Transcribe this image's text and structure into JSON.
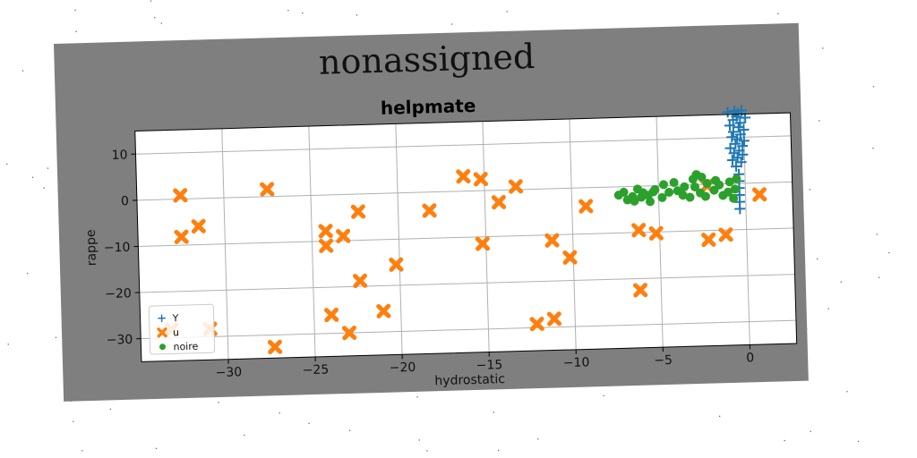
{
  "figure": {
    "suptitle": "nonassigned",
    "background_color": "#7f7f7f"
  },
  "chart_data": {
    "type": "scatter",
    "title": "helpmate",
    "xlabel": "hydrostatic",
    "ylabel": "rappe",
    "xlim": [
      -35,
      2.7
    ],
    "ylim": [
      -35,
      15
    ],
    "xticks": [
      -30,
      -25,
      -20,
      -15,
      -10,
      -5,
      0
    ],
    "yticks": [
      10,
      0,
      -10,
      -20,
      -30
    ],
    "xtick_labels": [
      "−30",
      "−25",
      "−20",
      "−15",
      "−10",
      "−5",
      "0"
    ],
    "ytick_labels": [
      "10",
      "0",
      "−10",
      "−20",
      "−30"
    ],
    "grid": true,
    "legend_position": "lower left",
    "series": [
      {
        "name": "Y",
        "marker": "plus",
        "color": "#1f77b4",
        "points": [
          [
            -0.5,
            16
          ],
          [
            -0.1,
            15.8
          ],
          [
            -0.3,
            15.2
          ],
          [
            -0.9,
            15.5
          ],
          [
            -0.4,
            14.5
          ],
          [
            0.1,
            14.2
          ],
          [
            -0.6,
            13.8
          ],
          [
            -0.2,
            13.1
          ],
          [
            -0.8,
            12.6
          ],
          [
            -0.3,
            12.2
          ],
          [
            0,
            11.6
          ],
          [
            -0.6,
            11.2
          ],
          [
            -0.2,
            10.6
          ],
          [
            -0.7,
            10.1
          ],
          [
            -0.4,
            9.6
          ],
          [
            0,
            9.2
          ],
          [
            -0.5,
            8.6
          ],
          [
            -0.1,
            8.1
          ],
          [
            -0.8,
            7.7
          ],
          [
            -0.3,
            7.1
          ],
          [
            -0.6,
            6.6
          ],
          [
            -0.1,
            6.2
          ],
          [
            -0.4,
            5.6
          ],
          [
            -0.7,
            5.1
          ],
          [
            -0.2,
            4.6
          ],
          [
            -0.5,
            3.7
          ],
          [
            -0.35,
            2
          ],
          [
            -0.35,
            0.5
          ],
          [
            -0.35,
            -1
          ],
          [
            -0.35,
            -2.5
          ],
          [
            -0.35,
            -4
          ],
          [
            -0.35,
            -5.5
          ]
        ]
      },
      {
        "name": "u",
        "marker": "x",
        "color": "#ff7f0e",
        "points": [
          [
            -32.5,
            0.8
          ],
          [
            -32.5,
            -8.2
          ],
          [
            -31.5,
            -6
          ],
          [
            -27.5,
            1.6
          ],
          [
            -27.3,
            -32.6
          ],
          [
            -33.2,
            -28.2
          ],
          [
            -31,
            -28.3
          ],
          [
            -24.2,
            -7.8
          ],
          [
            -24.2,
            -11
          ],
          [
            -23.2,
            -9
          ],
          [
            -22.3,
            -3.8
          ],
          [
            -22.3,
            -18.8
          ],
          [
            -24,
            -26
          ],
          [
            -23,
            -30
          ],
          [
            -20.2,
            -15.5
          ],
          [
            -21,
            -25.5
          ],
          [
            -18.2,
            -4
          ],
          [
            -16.2,
            3.2
          ],
          [
            -15.2,
            2.5
          ],
          [
            -14.2,
            -2.6
          ],
          [
            -13.2,
            0.7
          ],
          [
            -15.2,
            -11.5
          ],
          [
            -11.2,
            -11.2
          ],
          [
            -10.2,
            -15
          ],
          [
            -12.2,
            -29.2
          ],
          [
            -11.2,
            -28.2
          ],
          [
            -9.2,
            -4
          ],
          [
            -6.2,
            -9.5
          ],
          [
            -5.2,
            -10.3
          ],
          [
            -6.2,
            -22.5
          ],
          [
            -2.2,
            -0.3
          ],
          [
            -2.2,
            -12
          ],
          [
            -1.2,
            -11
          ],
          [
            0.8,
            -2.5
          ]
        ]
      },
      {
        "name": "noire",
        "marker": "circle",
        "color": "#2ca02c",
        "points": [
          [
            -7.3,
            -1.8
          ],
          [
            -7,
            -1.2
          ],
          [
            -6.5,
            -2.2
          ],
          [
            -6.2,
            -0.6
          ],
          [
            -5.9,
            -1.4
          ],
          [
            -6.4,
            -3.2
          ],
          [
            -6,
            -2.4
          ],
          [
            -5.6,
            -2
          ],
          [
            -5.2,
            -0.8
          ],
          [
            -5.5,
            -3.4
          ],
          [
            -5.3,
            -1.3
          ],
          [
            -4.8,
            -2.6
          ],
          [
            -4.4,
            -1.5
          ],
          [
            -4.1,
            0.6
          ],
          [
            -3.9,
            -1.2
          ],
          [
            -3.5,
            -0.4
          ],
          [
            -3.6,
            -2.2
          ],
          [
            -3.2,
            -2.7
          ],
          [
            -2.9,
            -0.5
          ],
          [
            -2.6,
            -1.8
          ],
          [
            -2.5,
            1.6
          ],
          [
            -2.2,
            0.2
          ],
          [
            -2.3,
            -2.6
          ],
          [
            -1.8,
            -1.3
          ],
          [
            -1.5,
            -0.2
          ],
          [
            -1.3,
            -2.5
          ],
          [
            -1,
            -1.8
          ],
          [
            -0.9,
            0.4
          ],
          [
            -0.6,
            -1.2
          ],
          [
            -0.5,
            1
          ],
          [
            -6.8,
            -2.9
          ],
          [
            -4.7,
            0.2
          ],
          [
            -3,
            1.2
          ],
          [
            -1.7,
            0.8
          ],
          [
            -0.7,
            -3.2
          ],
          [
            -2.8,
            2.2
          ]
        ]
      }
    ]
  }
}
